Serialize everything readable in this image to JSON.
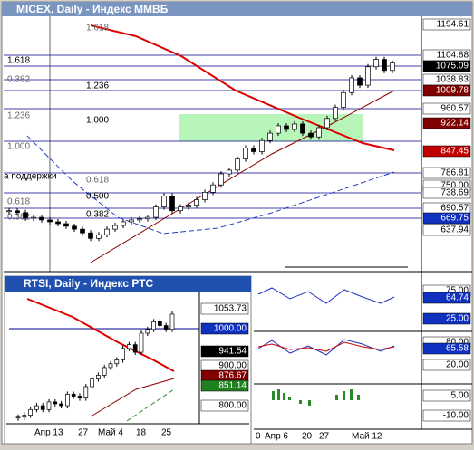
{
  "main": {
    "title": "MICEX, Daily - Индекс ММВБ",
    "fib_labels": [
      "1.618",
      "1.618",
      "0.382",
      "1.236",
      "1.236",
      "1.000",
      "1.000",
      "а поддержки",
      "0.618",
      "0.500",
      "0.618",
      "0.382",
      "0.382"
    ],
    "price_labels": [
      "1194.61",
      "1104.88",
      "1075.09",
      "1038.83",
      "1009.78",
      "960.57",
      "922.14",
      "847.45",
      "786.81",
      "750.00",
      "738.69",
      "690.57",
      "669.75",
      "637.94"
    ],
    "ylim": [
      1216.7,
      525
    ],
    "closes": [
      690,
      685,
      670,
      672,
      665,
      660,
      655,
      648,
      640,
      630,
      615,
      625,
      640,
      650,
      660,
      665,
      668,
      672,
      700,
      730,
      690,
      700,
      705,
      720,
      740,
      760,
      790,
      800,
      830,
      860,
      850,
      880,
      900,
      920,
      910,
      925,
      900,
      890,
      915,
      940,
      970,
      1010,
      1050,
      1030,
      1080,
      1100,
      1070,
      1090
    ]
  },
  "indicators": {
    "labels": [
      "75.00",
      "64.74",
      "25.00",
      "80.00",
      "65.58",
      "20.00",
      "5.00",
      "-10.00"
    ],
    "dates": [
      "0",
      "Апр 6",
      "20",
      "27",
      "Май 12"
    ]
  },
  "rtsi": {
    "title": "RTSI, Daily - Индекс РТС",
    "price_labels": [
      "1053.73",
      "1000.00",
      "941.54",
      "900.00",
      "876.67",
      "851.14",
      "800.00"
    ],
    "dates": [
      "Апр 13",
      "27",
      "Май 4",
      "18",
      "25"
    ],
    "ylim": [
      1092,
      748
    ],
    "closes": [
      770,
      775,
      790,
      800,
      790,
      810,
      805,
      800,
      830,
      825,
      820,
      850,
      870,
      880,
      900,
      910,
      920,
      950,
      960,
      940,
      990,
      1000,
      1020,
      1010,
      1000,
      1040
    ]
  }
}
